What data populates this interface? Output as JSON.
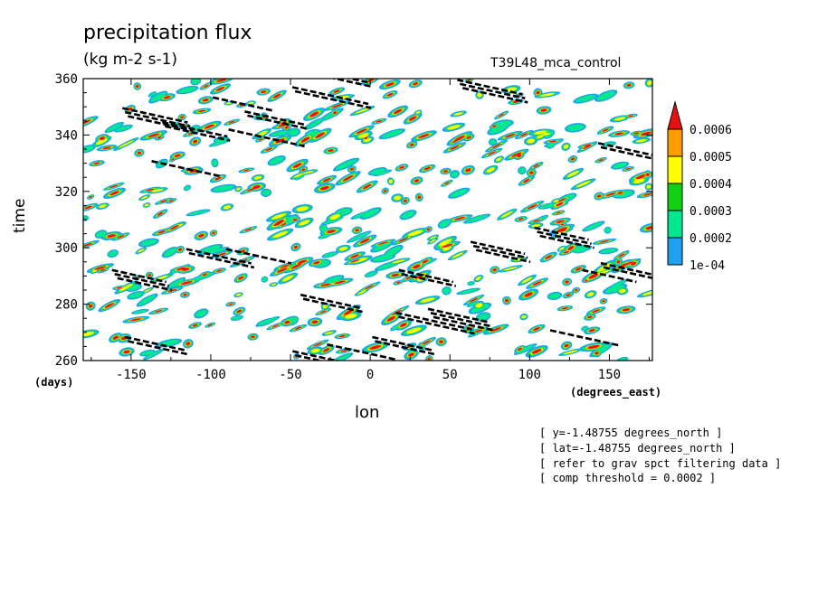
{
  "chart_data": {
    "type": "heatmap",
    "title": "precipitation flux",
    "subtitle": "(kg m-2 s-1)",
    "run_label": "T39L48_mca_control",
    "xlabel": "lon",
    "ylabel": "time",
    "x_unit": "(degrees_east)",
    "y_unit": "(days)",
    "xlim": [
      -180,
      177
    ],
    "ylim": [
      260,
      360
    ],
    "x_ticks": [
      -150,
      -100,
      -50,
      0,
      50,
      100,
      150
    ],
    "x_tick_labels": [
      "-150",
      "-100",
      "-50",
      "0",
      "50",
      "100",
      "150"
    ],
    "y_ticks": [
      260,
      280,
      300,
      320,
      340,
      360
    ],
    "y_tick_labels": [
      "260",
      "280",
      "300",
      "320",
      "340",
      "360"
    ],
    "colorbar": {
      "levels": [
        0.0001,
        0.0002,
        0.0003,
        0.0004,
        0.0005,
        0.0006
      ],
      "level_labels": [
        "1e-04",
        "0.0002",
        "0.0003",
        "0.0004",
        "0.0005",
        "0.0006"
      ],
      "colors": [
        "#1fa0f0",
        "#00e890",
        "#10d010",
        "#ffff00",
        "#ff9c00",
        "#e81010"
      ],
      "extend": "max"
    },
    "overlay": "black dashed filtered-wave contours (threshold 0.0002)",
    "annotations": [
      "[ y=-1.48755 degrees_north ]",
      "[ lat=-1.48755 degrees_north ]",
      "[ refer to grav spct filtering data ]",
      "[ comp threshold = 0.0002 ]"
    ]
  }
}
